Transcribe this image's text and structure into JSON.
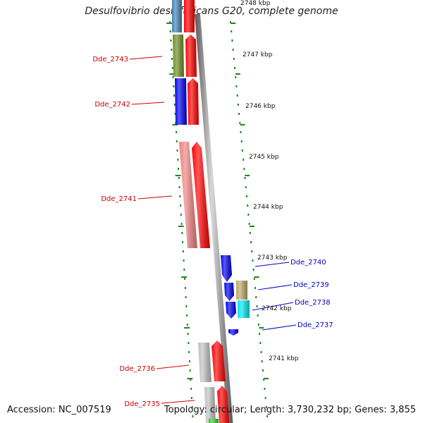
{
  "title": "Desulfovibrio desulfuricans G20, complete genome",
  "footer": {
    "accession": "Accession: NC_007519",
    "topology": "Topology: circular; Length: 3,730,232 bp; Genes: 3,855"
  },
  "colors": {
    "tick": "#1a8a1a",
    "backbone": "#8c8c8c",
    "label_left": "#cc0000",
    "label_right": "#0000cc"
  },
  "scale_labels": [
    "2748 kbp",
    "2747 kbp",
    "2746 kbp",
    "2745 kbp",
    "2744 kbp",
    "2743 kbp",
    "2742 kbp",
    "2741 kbp"
  ],
  "genes": [
    {
      "label": "Dde_2743",
      "side": "left",
      "color": "#6b8e23"
    },
    {
      "label": "Dde_2742",
      "side": "left",
      "color": "#0000ee"
    },
    {
      "label": "Dde_2741",
      "side": "left",
      "color": "#f08080"
    },
    {
      "label": "Dde_2740",
      "side": "right",
      "color": "#0000ee"
    },
    {
      "label": "Dde_2739",
      "side": "right",
      "color": "#0000ee"
    },
    {
      "label": "Dde_2738",
      "side": "right",
      "color": "#00e5ee"
    },
    {
      "label": "Dde_2737",
      "side": "right",
      "color": "#0000ee"
    },
    {
      "label": "Dde_2736",
      "side": "left",
      "color": "#c0c0c0"
    },
    {
      "label": "Dde_2735",
      "side": "left",
      "color": "#c0c0c0"
    }
  ]
}
